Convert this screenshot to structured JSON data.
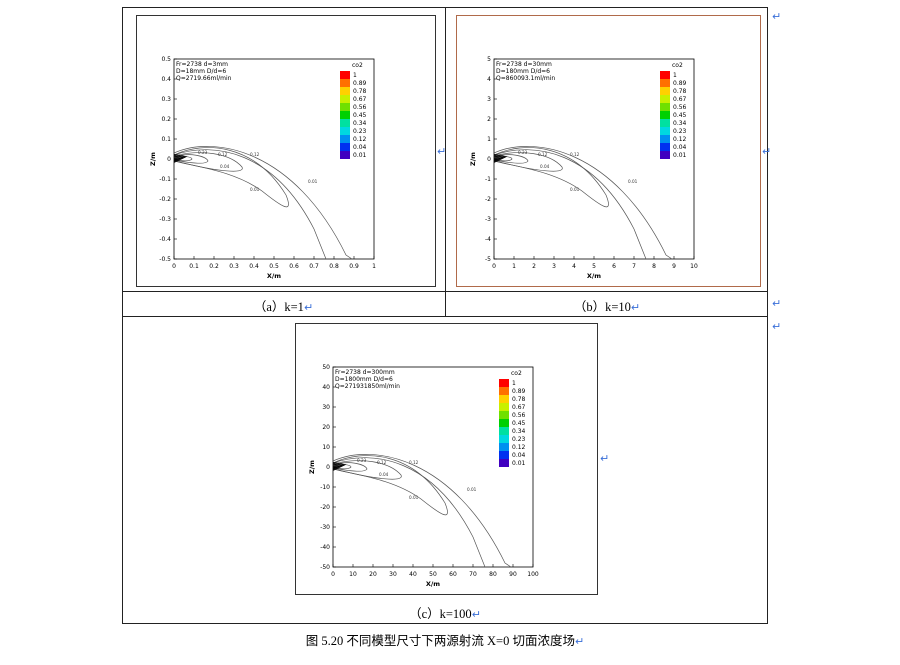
{
  "figure_caption": "图 5.20 不同模型尺寸下两源射流 X=0 切面浓度场",
  "paragraph_mark": "↵",
  "legend": {
    "title": "co2",
    "levels": [
      "1",
      "0.89",
      "0.78",
      "0.67",
      "0.56",
      "0.45",
      "0.34",
      "0.23",
      "0.12",
      "0.04",
      "0.01"
    ],
    "colors": [
      "#ff0000",
      "#ff7000",
      "#ffd000",
      "#c8f000",
      "#70e000",
      "#00d000",
      "#00e0a0",
      "#00d8e0",
      "#0090f0",
      "#0030f0",
      "#4000c0"
    ]
  },
  "panels": [
    {
      "caption": "（a）k=1",
      "info": [
        "Fr=2738 d=3mm",
        "D=18mm  D/d=6",
        "Q=2719.66ml/min"
      ],
      "xlabel": "X/m",
      "ylabel": "Z/m",
      "xticks": [
        "0",
        "0.1",
        "0.2",
        "0.3",
        "0.4",
        "0.5",
        "0.6",
        "0.7",
        "0.8",
        "0.9",
        "1"
      ],
      "yticks": [
        "0.5",
        "0.4",
        "0.3",
        "0.2",
        "0.1",
        "0",
        "-0.1",
        "-0.2",
        "-0.3",
        "-0.4",
        "-0.5"
      ],
      "contour_labels": [
        "0.23",
        "0.12",
        "0.04",
        "0.01",
        "0.01",
        "0.12"
      ]
    },
    {
      "caption": "（b）k=10",
      "info": [
        "Fr=2738 d=30mm",
        "D=180mm  D/d=6",
        "Q=860093.1ml/min"
      ],
      "xlabel": "X/m",
      "ylabel": "Z/m",
      "xticks": [
        "0",
        "1",
        "2",
        "3",
        "4",
        "5",
        "6",
        "7",
        "8",
        "9",
        "10"
      ],
      "yticks": [
        "5",
        "4",
        "3",
        "2",
        "1",
        "0",
        "-1",
        "-2",
        "-3",
        "-4",
        "-5"
      ],
      "contour_labels": [
        "0.23",
        "0.12",
        "0.04",
        "0.01",
        "0.01",
        "0.12"
      ]
    },
    {
      "caption": "（c）k=100",
      "info": [
        "Fr=2738 d=300mm",
        "D=1800mm  D/d=6",
        "Q=271931850ml/min"
      ],
      "xlabel": "X/m",
      "ylabel": "Z/m",
      "xticks": [
        "0",
        "10",
        "20",
        "30",
        "40",
        "50",
        "60",
        "70",
        "80",
        "90",
        "100"
      ],
      "yticks": [
        "50",
        "40",
        "30",
        "20",
        "10",
        "0",
        "-10",
        "-20",
        "-30",
        "-40",
        "-50"
      ],
      "contour_labels": [
        "0.23",
        "0.12",
        "0.04",
        "0.01",
        "0.01",
        "0.12"
      ]
    }
  ]
}
